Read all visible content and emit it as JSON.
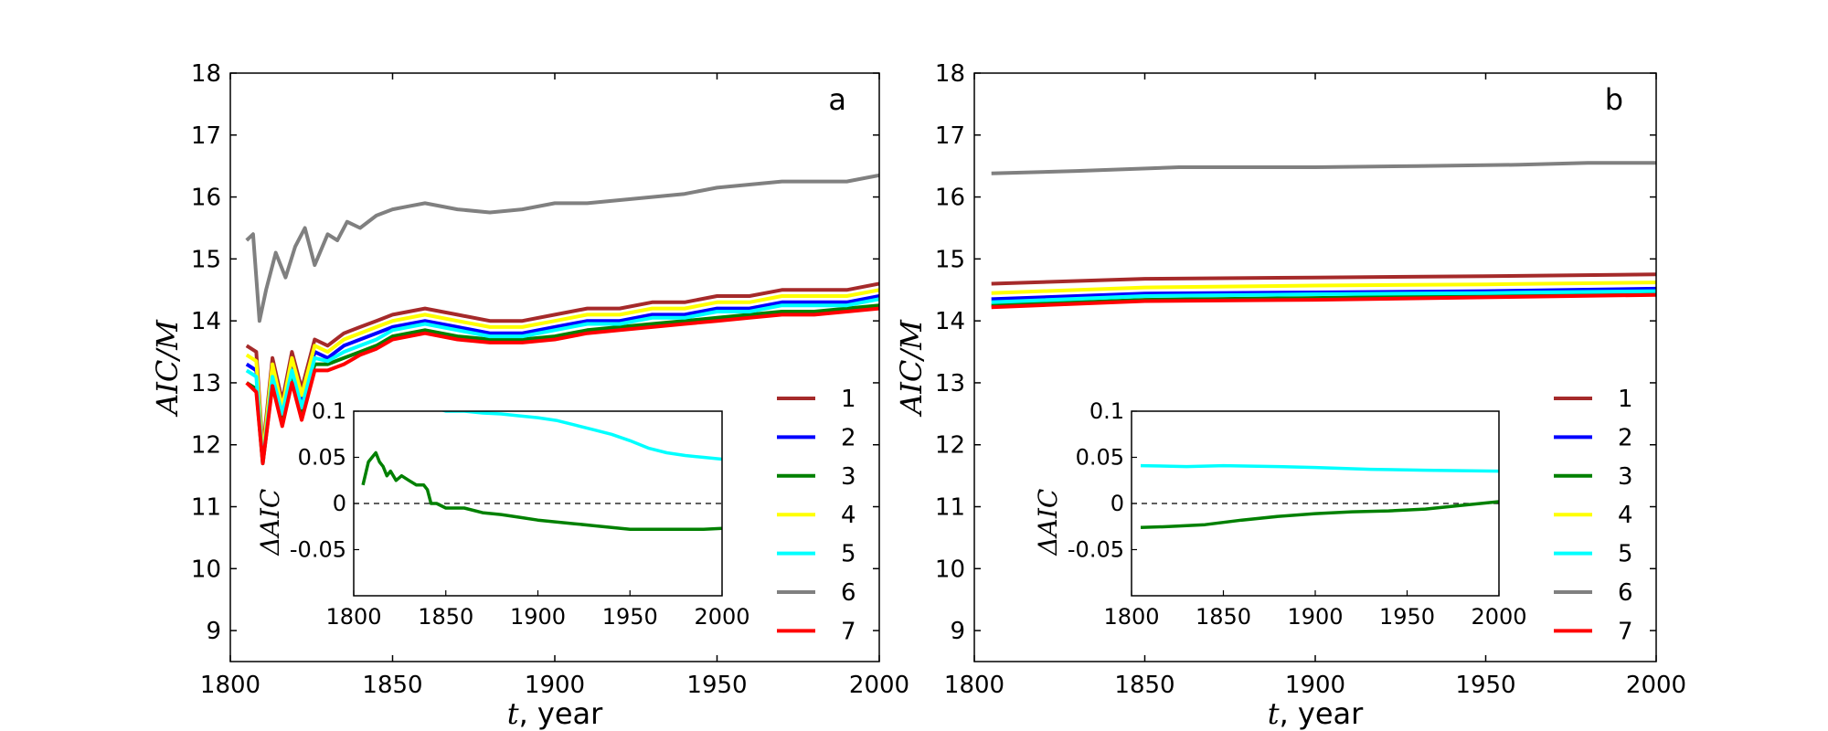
{
  "figure": {
    "panels": [
      {
        "letter": "a",
        "xlabel_var": "t",
        "xlabel_unit": ", year",
        "ylabel": "AIC/M",
        "inset_ylabel": "ΔAIC"
      },
      {
        "letter": "b",
        "xlabel_var": "t",
        "xlabel_unit": ", year",
        "ylabel": "AIC/M",
        "inset_ylabel": "ΔAIC"
      }
    ],
    "x_ticks": [
      "1800",
      "1850",
      "1900",
      "1950",
      "2000"
    ],
    "y_ticks": [
      "9",
      "10",
      "11",
      "12",
      "13",
      "14",
      "15",
      "16",
      "17",
      "18"
    ],
    "inset_x_ticks": [
      "1800",
      "1850",
      "1900",
      "1950",
      "2000"
    ],
    "inset_y_ticks": [
      "-0.05",
      "0",
      "0.05",
      "0.1"
    ],
    "legend": [
      "1",
      "2",
      "3",
      "4",
      "5",
      "6",
      "7"
    ]
  },
  "chart_data": [
    {
      "type": "line",
      "panel": "a",
      "xlim": [
        1800,
        2000
      ],
      "ylim": [
        8.5,
        18
      ],
      "xlabel": "t, year",
      "ylabel": "AIC/M",
      "series": [
        {
          "name": "1",
          "color": "#a52a2a",
          "x": [
            1805,
            1808,
            1810,
            1813,
            1816,
            1819,
            1822,
            1826,
            1830,
            1835,
            1840,
            1845,
            1850,
            1860,
            1870,
            1880,
            1890,
            1900,
            1910,
            1920,
            1930,
            1940,
            1950,
            1960,
            1970,
            1980,
            1990,
            2000
          ],
          "y": [
            13.6,
            13.5,
            11.9,
            13.4,
            12.7,
            13.5,
            12.9,
            13.7,
            13.6,
            13.8,
            13.9,
            14.0,
            14.1,
            14.2,
            14.1,
            14.0,
            14.0,
            14.1,
            14.2,
            14.2,
            14.3,
            14.3,
            14.4,
            14.4,
            14.5,
            14.5,
            14.5,
            14.6
          ]
        },
        {
          "name": "2",
          "color": "#0000ff",
          "x": [
            1805,
            1808,
            1810,
            1813,
            1816,
            1819,
            1822,
            1826,
            1830,
            1835,
            1840,
            1845,
            1850,
            1860,
            1870,
            1880,
            1890,
            1900,
            1910,
            1920,
            1930,
            1940,
            1950,
            1960,
            1970,
            1980,
            1990,
            2000
          ],
          "y": [
            13.3,
            13.2,
            11.75,
            13.2,
            12.5,
            13.3,
            12.65,
            13.5,
            13.4,
            13.6,
            13.7,
            13.8,
            13.9,
            14.0,
            13.9,
            13.8,
            13.8,
            13.9,
            14.0,
            14.0,
            14.1,
            14.1,
            14.2,
            14.2,
            14.3,
            14.3,
            14.3,
            14.4
          ]
        },
        {
          "name": "3",
          "color": "#008000",
          "x": [
            1805,
            1808,
            1810,
            1813,
            1816,
            1819,
            1822,
            1826,
            1830,
            1835,
            1840,
            1845,
            1850,
            1860,
            1870,
            1880,
            1890,
            1900,
            1910,
            1920,
            1930,
            1940,
            1950,
            1960,
            1970,
            1980,
            1990,
            2000
          ],
          "y": [
            13.0,
            12.9,
            11.7,
            13.0,
            12.4,
            13.1,
            12.5,
            13.3,
            13.3,
            13.4,
            13.5,
            13.6,
            13.75,
            13.85,
            13.75,
            13.7,
            13.7,
            13.75,
            13.85,
            13.9,
            13.95,
            14.0,
            14.05,
            14.1,
            14.15,
            14.15,
            14.2,
            14.25
          ]
        },
        {
          "name": "4",
          "color": "#ffff00",
          "x": [
            1805,
            1808,
            1810,
            1813,
            1816,
            1819,
            1822,
            1826,
            1830,
            1835,
            1840,
            1845,
            1850,
            1860,
            1870,
            1880,
            1890,
            1900,
            1910,
            1920,
            1930,
            1940,
            1950,
            1960,
            1970,
            1980,
            1990,
            2000
          ],
          "y": [
            13.45,
            13.35,
            11.8,
            13.3,
            12.6,
            13.4,
            12.8,
            13.6,
            13.5,
            13.7,
            13.8,
            13.9,
            14.0,
            14.1,
            14.0,
            13.9,
            13.9,
            14.0,
            14.1,
            14.1,
            14.2,
            14.2,
            14.3,
            14.3,
            14.4,
            14.4,
            14.4,
            14.5
          ]
        },
        {
          "name": "5",
          "color": "#00ffff",
          "x": [
            1805,
            1808,
            1810,
            1813,
            1816,
            1819,
            1822,
            1826,
            1830,
            1835,
            1840,
            1845,
            1850,
            1860,
            1870,
            1880,
            1890,
            1900,
            1910,
            1920,
            1930,
            1940,
            1950,
            1960,
            1970,
            1980,
            1990,
            2000
          ],
          "y": [
            13.2,
            13.1,
            11.7,
            13.1,
            12.5,
            13.2,
            12.6,
            13.4,
            13.35,
            13.5,
            13.6,
            13.7,
            13.85,
            13.95,
            13.85,
            13.75,
            13.75,
            13.85,
            13.95,
            13.95,
            14.05,
            14.05,
            14.15,
            14.15,
            14.25,
            14.25,
            14.25,
            14.35
          ]
        },
        {
          "name": "6",
          "color": "#808080",
          "x": [
            1805,
            1807,
            1809,
            1811,
            1814,
            1817,
            1820,
            1823,
            1826,
            1830,
            1833,
            1836,
            1840,
            1845,
            1850,
            1855,
            1860,
            1870,
            1880,
            1890,
            1900,
            1910,
            1920,
            1930,
            1940,
            1950,
            1960,
            1970,
            1980,
            1990,
            2000
          ],
          "y": [
            15.3,
            15.4,
            14.0,
            14.5,
            15.1,
            14.7,
            15.2,
            15.5,
            14.9,
            15.4,
            15.3,
            15.6,
            15.5,
            15.7,
            15.8,
            15.85,
            15.9,
            15.8,
            15.75,
            15.8,
            15.9,
            15.9,
            15.95,
            16.0,
            16.05,
            16.15,
            16.2,
            16.25,
            16.25,
            16.25,
            16.35
          ]
        },
        {
          "name": "7",
          "color": "#ff0000",
          "x": [
            1805,
            1808,
            1810,
            1813,
            1816,
            1819,
            1822,
            1826,
            1830,
            1835,
            1840,
            1845,
            1850,
            1860,
            1870,
            1880,
            1890,
            1900,
            1910,
            1920,
            1930,
            1940,
            1950,
            1960,
            1970,
            1980,
            1990,
            2000
          ],
          "y": [
            13.0,
            12.85,
            11.7,
            12.95,
            12.3,
            13.0,
            12.4,
            13.2,
            13.2,
            13.3,
            13.45,
            13.55,
            13.7,
            13.8,
            13.7,
            13.65,
            13.65,
            13.7,
            13.8,
            13.85,
            13.9,
            13.95,
            14.0,
            14.05,
            14.1,
            14.1,
            14.15,
            14.2
          ]
        }
      ],
      "inset": {
        "xlim": [
          1800,
          2000
        ],
        "ylim": [
          -0.1,
          0.1
        ],
        "ylabel": "ΔAIC",
        "zero_line": "dashed",
        "series": [
          {
            "name": "5",
            "color": "#00ffff",
            "x": [
              1842,
              1850,
              1860,
              1870,
              1880,
              1890,
              1900,
              1910,
              1920,
              1930,
              1940,
              1950,
              1960,
              1970,
              1980,
              1990,
              2000
            ],
            "y": [
              0.105,
              0.1,
              0.1,
              0.098,
              0.097,
              0.095,
              0.093,
              0.09,
              0.085,
              0.08,
              0.075,
              0.068,
              0.06,
              0.055,
              0.052,
              0.05,
              0.048
            ]
          },
          {
            "name": "3",
            "color": "#008000",
            "x": [
              1805,
              1808,
              1810,
              1812,
              1814,
              1816,
              1818,
              1820,
              1823,
              1826,
              1830,
              1834,
              1838,
              1840,
              1842,
              1845,
              1850,
              1860,
              1870,
              1880,
              1890,
              1900,
              1910,
              1920,
              1930,
              1940,
              1950,
              1960,
              1970,
              1980,
              1990,
              2000
            ],
            "y": [
              0.02,
              0.045,
              0.05,
              0.055,
              0.045,
              0.04,
              0.03,
              0.035,
              0.025,
              0.03,
              0.025,
              0.02,
              0.02,
              0.015,
              0.0,
              0.0,
              -0.005,
              -0.005,
              -0.01,
              -0.012,
              -0.015,
              -0.018,
              -0.02,
              -0.022,
              -0.024,
              -0.026,
              -0.028,
              -0.028,
              -0.028,
              -0.028,
              -0.028,
              -0.027
            ]
          }
        ]
      }
    },
    {
      "type": "line",
      "panel": "b",
      "xlim": [
        1800,
        2000
      ],
      "ylim": [
        8.5,
        18
      ],
      "xlabel": "t, year",
      "ylabel": "AIC/M",
      "series": [
        {
          "name": "1",
          "color": "#a52a2a",
          "x": [
            1805,
            1850,
            1900,
            1950,
            2000
          ],
          "y": [
            14.6,
            14.68,
            14.7,
            14.72,
            14.75
          ]
        },
        {
          "name": "2",
          "color": "#0000ff",
          "x": [
            1805,
            1850,
            1900,
            1950,
            2000
          ],
          "y": [
            14.35,
            14.44,
            14.46,
            14.48,
            14.52
          ]
        },
        {
          "name": "3",
          "color": "#008000",
          "x": [
            1805,
            1850,
            1900,
            1950,
            2000
          ],
          "y": [
            14.25,
            14.34,
            14.37,
            14.41,
            14.46
          ]
        },
        {
          "name": "4",
          "color": "#ffff00",
          "x": [
            1805,
            1850,
            1900,
            1950,
            2000
          ],
          "y": [
            14.45,
            14.54,
            14.57,
            14.59,
            14.62
          ]
        },
        {
          "name": "5",
          "color": "#00ffff",
          "x": [
            1805,
            1850,
            1900,
            1950,
            2000
          ],
          "y": [
            14.3,
            14.4,
            14.43,
            14.45,
            14.48
          ]
        },
        {
          "name": "6",
          "color": "#808080",
          "x": [
            1805,
            1830,
            1860,
            1900,
            1930,
            1960,
            1980,
            2000
          ],
          "y": [
            16.38,
            16.42,
            16.48,
            16.48,
            16.5,
            16.52,
            16.55,
            16.55
          ]
        },
        {
          "name": "7",
          "color": "#ff0000",
          "x": [
            1805,
            1850,
            1900,
            1950,
            2000
          ],
          "y": [
            14.22,
            14.32,
            14.34,
            14.38,
            14.42
          ]
        }
      ],
      "inset": {
        "xlim": [
          1800,
          2000
        ],
        "ylim": [
          -0.1,
          0.1
        ],
        "ylabel": "ΔAIC",
        "zero_line": "dashed",
        "series": [
          {
            "name": "5",
            "color": "#00ffff",
            "x": [
              1805,
              1830,
              1850,
              1880,
              1900,
              1930,
              1960,
              2000
            ],
            "y": [
              0.041,
              0.04,
              0.041,
              0.04,
              0.039,
              0.037,
              0.036,
              0.035
            ]
          },
          {
            "name": "3",
            "color": "#008000",
            "x": [
              1805,
              1820,
              1840,
              1860,
              1880,
              1900,
              1920,
              1940,
              1960,
              1980,
              2000
            ],
            "y": [
              -0.026,
              -0.025,
              -0.023,
              -0.018,
              -0.014,
              -0.011,
              -0.009,
              -0.008,
              -0.006,
              -0.002,
              0.002
            ]
          }
        ]
      }
    }
  ]
}
